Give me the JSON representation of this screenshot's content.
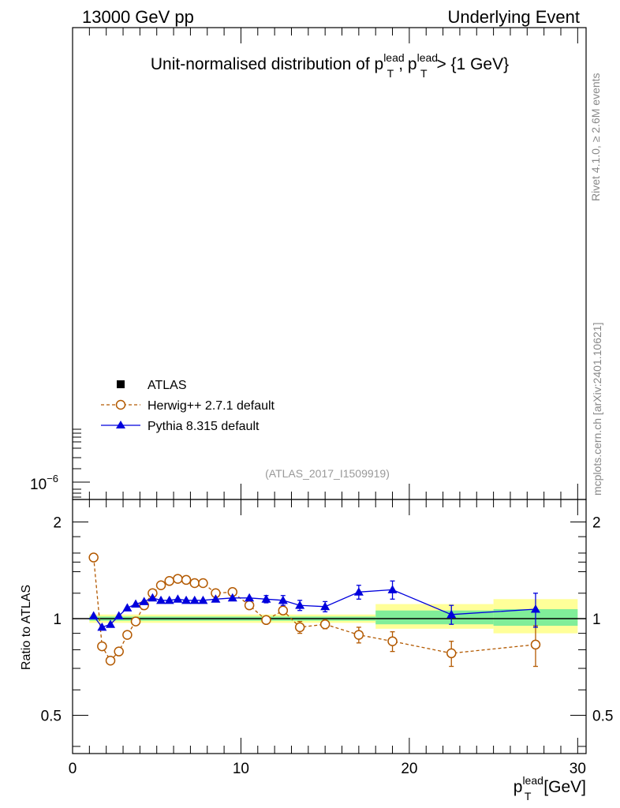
{
  "header": {
    "left": "13000 GeV pp",
    "right": "Underlying Event"
  },
  "title": {
    "prefix": "Unit-normalised distribution of p",
    "sup1": "lead",
    "sub1": "T",
    "sep": ", p",
    "sup2": "lead",
    "sub2": "T",
    "suffix": " > {1 GeV}"
  },
  "side_labels": {
    "rivet": "Rivet 4.1.0, ≥ 2.6M events",
    "mcplots": "mcplots.cern.ch [arXiv:2401.10621]"
  },
  "analysis_label": "(ATLAS_2017_I1509919)",
  "legend": [
    {
      "label": "ATLAS",
      "marker": "square",
      "color": "#000000"
    },
    {
      "label": "Herwig++ 2.7.1 default",
      "marker": "open-circle",
      "color": "#b35900"
    },
    {
      "label": "Pythia 8.315 default",
      "marker": "triangle",
      "color": "#0000dd"
    }
  ],
  "main_axis": {
    "ytick_label_base": "10",
    "ytick_label_exp": "−6"
  },
  "ratio_axis": {
    "ylabel": "Ratio to ATLAS",
    "ytick_labels": [
      "0.5",
      "1",
      "2"
    ],
    "ytick_values": [
      0.5,
      1,
      2
    ],
    "ylim": [
      0.38,
      2.35
    ]
  },
  "x_axis": {
    "label_base": "p",
    "label_sup": "lead",
    "label_sub": "T",
    "label_unit": " [GeV]",
    "tick_labels": [
      "0",
      "10",
      "20",
      "30"
    ],
    "tick_values": [
      0,
      10,
      20,
      30
    ],
    "xlim": [
      0,
      30.5
    ]
  },
  "chart_data": {
    "type": "line",
    "title": "Unit-normalised distribution of pT lead, pT lead > {1 GeV}",
    "xlabel": "pT lead [GeV]",
    "ylabel": "Ratio to ATLAS",
    "xlim": [
      0,
      30.5
    ],
    "ylim": [
      0.38,
      2.35
    ],
    "y_scale": "log",
    "reference_line": 1.0,
    "bands": [
      {
        "x0": 1.0,
        "x1": 18.0,
        "inner": [
          0.985,
          1.015
        ],
        "outer": [
          0.97,
          1.03
        ]
      },
      {
        "x0": 18.0,
        "x1": 25.0,
        "inner": [
          0.96,
          1.06
        ],
        "outer": [
          0.93,
          1.11
        ]
      },
      {
        "x0": 25.0,
        "x1": 30.0,
        "inner": [
          0.95,
          1.07
        ],
        "outer": [
          0.9,
          1.15
        ]
      }
    ],
    "series": [
      {
        "name": "Herwig++ 2.7.1 default",
        "color": "#b35900",
        "marker": "open-circle",
        "line": "dashed",
        "x": [
          1.25,
          1.75,
          2.25,
          2.75,
          3.25,
          3.75,
          4.25,
          4.75,
          5.25,
          5.75,
          6.25,
          6.75,
          7.25,
          7.75,
          8.5,
          9.5,
          10.5,
          11.5,
          12.5,
          13.5,
          15.0,
          17.0,
          19.0,
          22.5,
          27.5
        ],
        "y": [
          1.55,
          0.82,
          0.74,
          0.79,
          0.89,
          0.98,
          1.1,
          1.2,
          1.27,
          1.31,
          1.33,
          1.32,
          1.29,
          1.29,
          1.2,
          1.21,
          1.1,
          0.99,
          1.06,
          0.94,
          0.96,
          0.89,
          0.85,
          0.78,
          0.83
        ],
        "err": [
          0.02,
          0.015,
          0.01,
          0.01,
          0.01,
          0.01,
          0.01,
          0.01,
          0.01,
          0.01,
          0.01,
          0.01,
          0.01,
          0.01,
          0.015,
          0.015,
          0.02,
          0.025,
          0.03,
          0.04,
          0.03,
          0.05,
          0.06,
          0.07,
          0.12
        ]
      },
      {
        "name": "Pythia 8.315 default",
        "color": "#0000dd",
        "marker": "triangle",
        "line": "solid",
        "x": [
          1.25,
          1.75,
          2.25,
          2.75,
          3.25,
          3.75,
          4.25,
          4.75,
          5.25,
          5.75,
          6.25,
          6.75,
          7.25,
          7.75,
          8.5,
          9.5,
          10.5,
          11.5,
          12.5,
          13.5,
          15.0,
          17.0,
          19.0,
          22.5,
          27.5
        ],
        "y": [
          1.02,
          0.94,
          0.96,
          1.02,
          1.08,
          1.11,
          1.13,
          1.16,
          1.14,
          1.14,
          1.15,
          1.14,
          1.14,
          1.14,
          1.15,
          1.16,
          1.16,
          1.15,
          1.14,
          1.1,
          1.09,
          1.21,
          1.23,
          1.03,
          1.07
        ],
        "err": [
          0.01,
          0.01,
          0.01,
          0.01,
          0.01,
          0.01,
          0.01,
          0.01,
          0.01,
          0.01,
          0.01,
          0.01,
          0.01,
          0.01,
          0.015,
          0.02,
          0.025,
          0.03,
          0.04,
          0.04,
          0.04,
          0.06,
          0.08,
          0.07,
          0.13
        ]
      }
    ]
  }
}
